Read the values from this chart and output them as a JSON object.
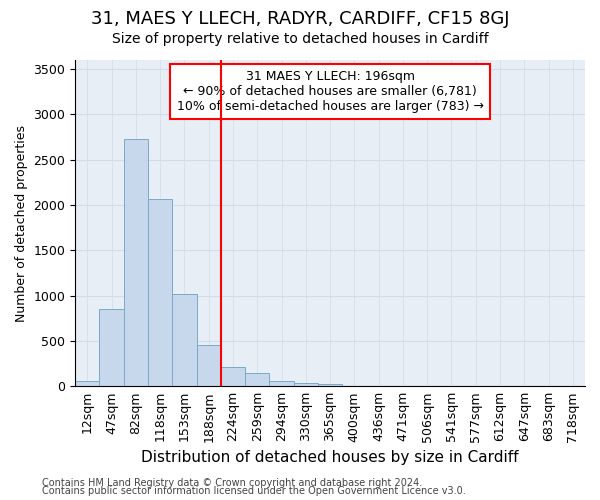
{
  "title": "31, MAES Y LLECH, RADYR, CARDIFF, CF15 8GJ",
  "subtitle": "Size of property relative to detached houses in Cardiff",
  "xlabel": "Distribution of detached houses by size in Cardiff",
  "ylabel": "Number of detached properties",
  "bar_labels": [
    "12sqm",
    "47sqm",
    "82sqm",
    "118sqm",
    "153sqm",
    "188sqm",
    "224sqm",
    "259sqm",
    "294sqm",
    "330sqm",
    "365sqm",
    "400sqm",
    "436sqm",
    "471sqm",
    "506sqm",
    "541sqm",
    "577sqm",
    "612sqm",
    "647sqm",
    "683sqm",
    "718sqm"
  ],
  "bar_values": [
    60,
    850,
    2730,
    2070,
    1020,
    460,
    210,
    150,
    60,
    30,
    20,
    0,
    0,
    0,
    0,
    0,
    0,
    0,
    0,
    0,
    0
  ],
  "bar_color": "#c8d8ec",
  "bar_edge_color": "#7aaac8",
  "property_line_x": 5.5,
  "property_line_color": "red",
  "annotation_line1": "31 MAES Y LLECH: 196sqm",
  "annotation_line2": "← 90% of detached houses are smaller (6,781)",
  "annotation_line3": "10% of semi-detached houses are larger (783) →",
  "annotation_box_color": "red",
  "ylim": [
    0,
    3600
  ],
  "yticks": [
    0,
    500,
    1000,
    1500,
    2000,
    2500,
    3000,
    3500
  ],
  "footer_line1": "Contains HM Land Registry data © Crown copyright and database right 2024.",
  "footer_line2": "Contains public sector information licensed under the Open Government Licence v3.0.",
  "grid_color": "#d0dce8",
  "background_color": "#e8eef5",
  "title_fontsize": 13,
  "subtitle_fontsize": 10,
  "xlabel_fontsize": 11,
  "ylabel_fontsize": 9,
  "tick_fontsize": 9,
  "annotation_fontsize": 9,
  "footer_fontsize": 7
}
